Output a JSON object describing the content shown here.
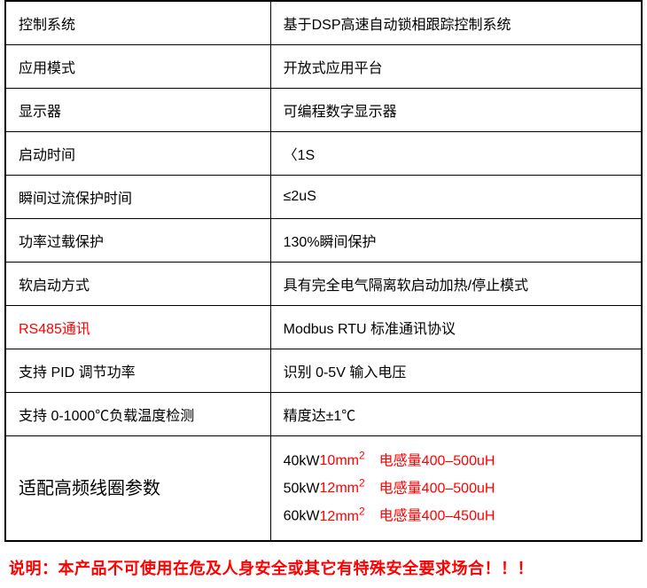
{
  "rows": [
    {
      "label": "控制系统",
      "value": "基于DSP高速自动锁相跟踪控制系统",
      "label_color": "#000000"
    },
    {
      "label": "应用模式",
      "value": "开放式应用平台",
      "label_color": "#000000"
    },
    {
      "label": "显示器",
      "value": "可编程数字显示器",
      "label_color": "#000000"
    },
    {
      "label": "启动时间",
      "value": "〈1S",
      "label_color": "#000000"
    },
    {
      "label": "瞬间过流保护时间",
      "value": "≤2uS",
      "label_color": "#000000"
    },
    {
      "label": "功率过载保护",
      "value": "130%瞬间保护",
      "label_color": "#000000"
    },
    {
      "label": "软启动方式",
      "value": "具有完全电气隔离软启动加热/停止模式",
      "label_color": "#000000"
    },
    {
      "label": "RS485通讯",
      "value": "Modbus RTU 标准通讯协议",
      "label_color": "#ff0000"
    },
    {
      "label": "支持 PID 调节功率",
      "value": "识别 0-5V 输入电压",
      "label_color": "#000000"
    },
    {
      "label": "支持 0-1000℃负载温度检测",
      "value": "精度达±1℃",
      "label_color": "#000000"
    }
  ],
  "coil": {
    "label": "适配高频线圈参数",
    "label_fontsize": "20px",
    "lines": [
      {
        "kw": "40kW",
        "size": "10mm",
        "ind": "电感量400–500uH"
      },
      {
        "kw": "50kW",
        "size": "12mm",
        "ind": "电感量400–500uH"
      },
      {
        "kw": "60kW",
        "size": "12mm",
        "ind": "电感量400–450uH"
      }
    ]
  },
  "note": "说明：本产品不可使用在危及人身安全或其它有特殊安全要求场合！！！",
  "colors": {
    "text": "#000000",
    "accent": "#ff0000",
    "border": "#000000",
    "background": "#ffffff"
  }
}
